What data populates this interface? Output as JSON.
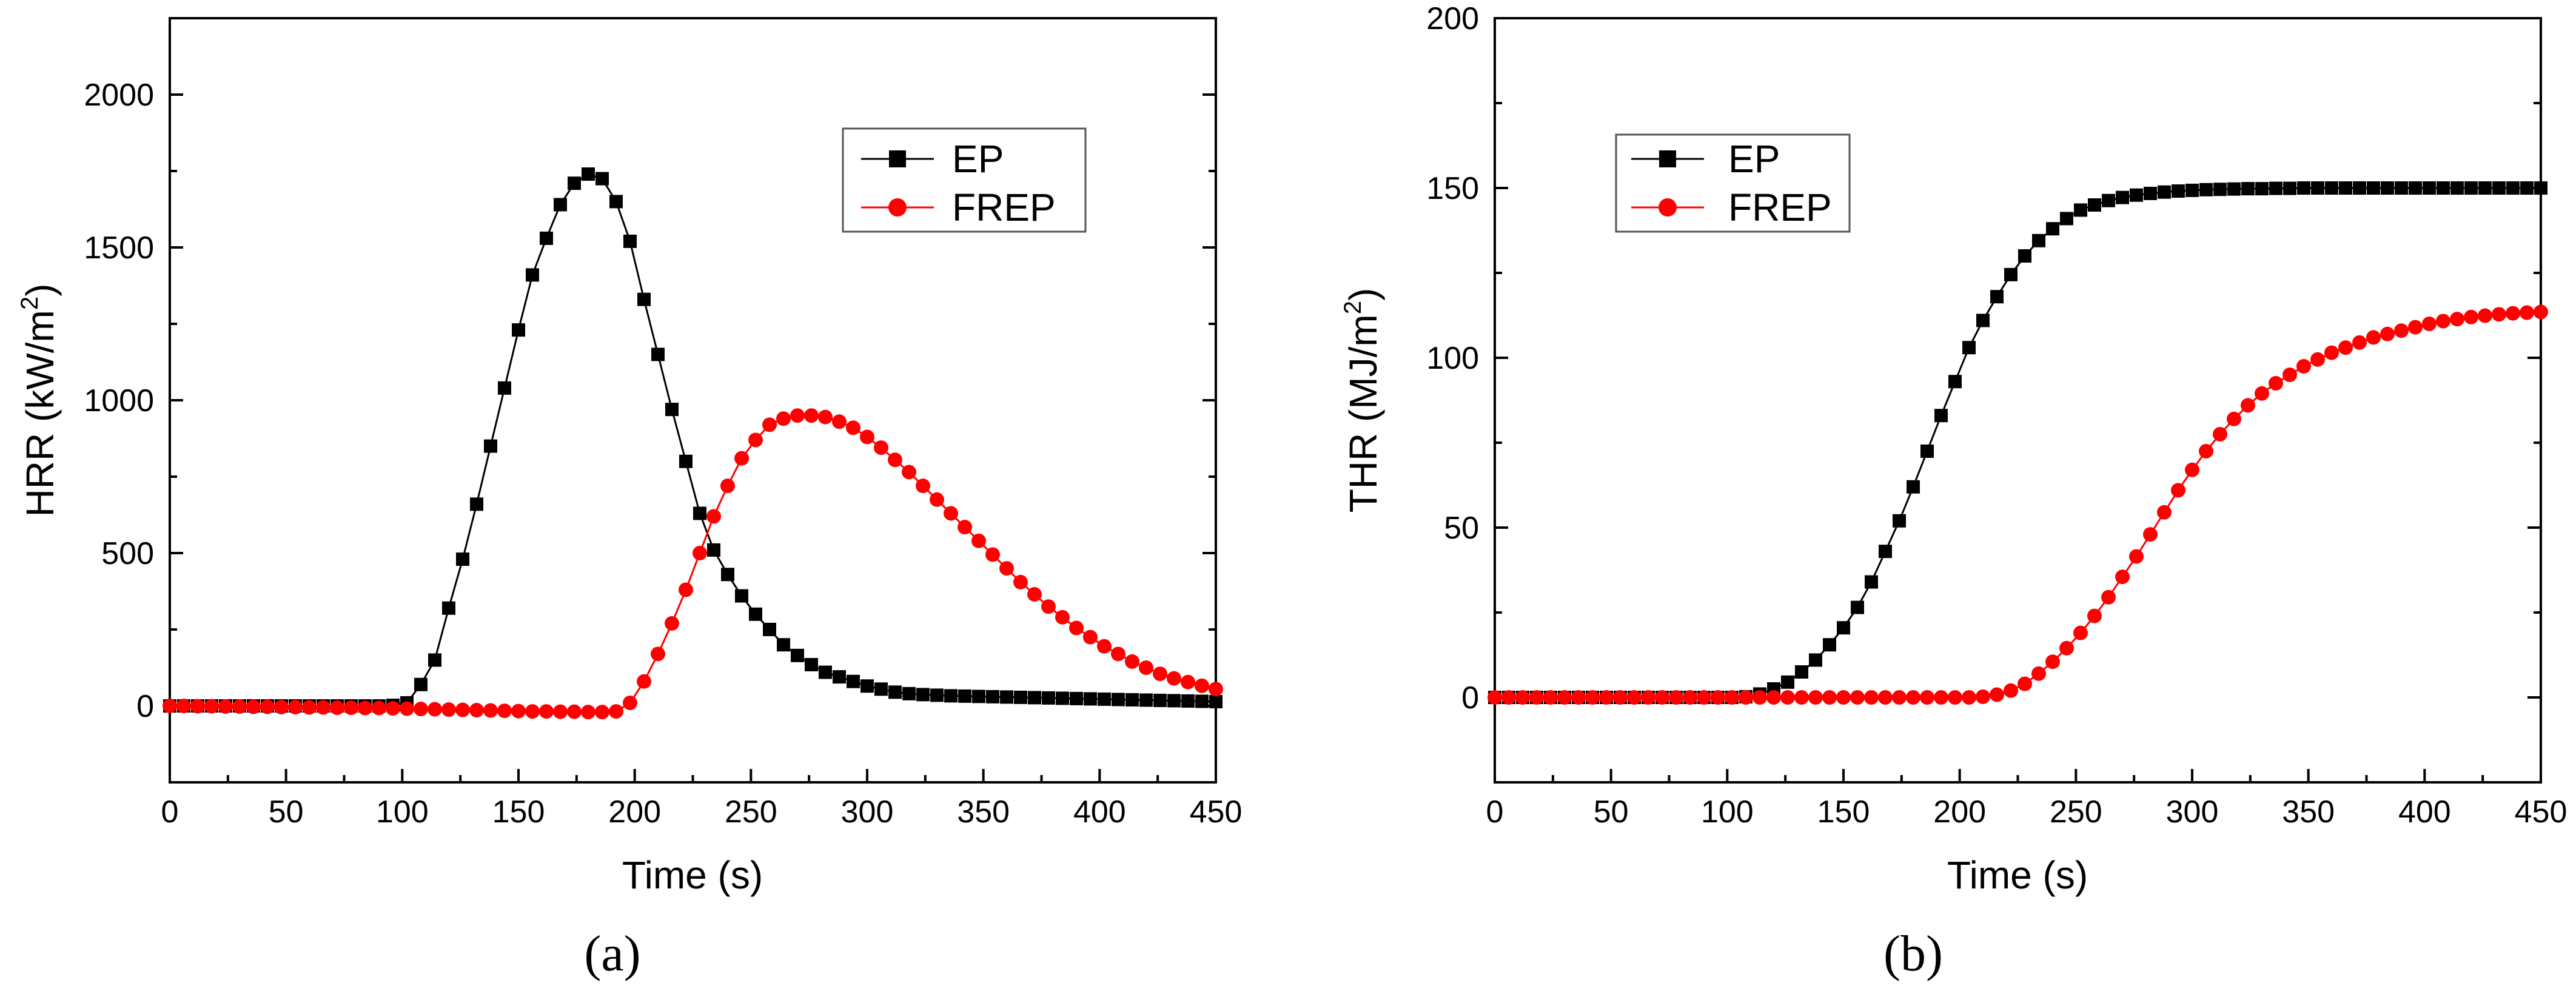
{
  "chart_data": [
    {
      "type": "line",
      "panel_label": "(a)",
      "xlabel": "Time (s)",
      "ylabel": "HRR (kW/m2)",
      "ylabel_main": "HRR (kW/m",
      "ylabel_sup": "2",
      "ylabel_end": ")",
      "xlim": [
        0,
        450
      ],
      "ylim": [
        -250,
        2250
      ],
      "xticks": [
        "0",
        "50",
        "100",
        "150",
        "200",
        "250",
        "300",
        "350",
        "400",
        "450"
      ],
      "yticks": [
        "0",
        "500",
        "1000",
        "1500",
        "2000"
      ],
      "legend": [
        "EP",
        "FREP"
      ],
      "legend_position": "top-right",
      "series": [
        {
          "name": "EP",
          "color": "#000000",
          "marker": "square",
          "x": [
            0,
            6,
            12,
            18,
            24,
            30,
            36,
            42,
            48,
            54,
            60,
            66,
            72,
            78,
            84,
            90,
            96,
            102,
            108,
            114,
            120,
            126,
            132,
            138,
            144,
            150,
            156,
            162,
            168,
            174,
            180,
            186,
            192,
            198,
            204,
            210,
            216,
            222,
            228,
            234,
            240,
            246,
            252,
            258,
            264,
            270,
            276,
            282,
            288,
            294,
            300,
            306,
            312,
            318,
            324,
            330,
            336,
            342,
            348,
            354,
            360,
            366,
            372,
            378,
            384,
            390,
            396,
            402,
            408,
            414,
            420,
            426,
            432,
            438,
            444,
            450
          ],
          "y": [
            0,
            0,
            0,
            0,
            0,
            0,
            0,
            0,
            0,
            0,
            0,
            0,
            0,
            0,
            0,
            0,
            2,
            10,
            70,
            150,
            320,
            480,
            660,
            850,
            1040,
            1230,
            1410,
            1530,
            1640,
            1710,
            1740,
            1725,
            1650,
            1520,
            1330,
            1150,
            970,
            800,
            630,
            510,
            430,
            360,
            300,
            250,
            200,
            165,
            135,
            110,
            95,
            80,
            65,
            55,
            45,
            40,
            37,
            35,
            33,
            32,
            31,
            30,
            29,
            28,
            27,
            26,
            25,
            24,
            23,
            22,
            21,
            20,
            19,
            18,
            17,
            16,
            15,
            14
          ]
        },
        {
          "name": "FREP",
          "color": "#ff0000",
          "marker": "circle",
          "x": [
            0,
            6,
            12,
            18,
            24,
            30,
            36,
            42,
            48,
            54,
            60,
            66,
            72,
            78,
            84,
            90,
            96,
            102,
            108,
            114,
            120,
            126,
            132,
            138,
            144,
            150,
            156,
            162,
            168,
            174,
            180,
            186,
            192,
            198,
            204,
            210,
            216,
            222,
            228,
            234,
            240,
            246,
            252,
            258,
            264,
            270,
            276,
            282,
            288,
            294,
            300,
            306,
            312,
            318,
            324,
            330,
            336,
            342,
            348,
            354,
            360,
            366,
            372,
            378,
            384,
            390,
            396,
            402,
            408,
            414,
            420,
            426,
            432,
            438,
            444,
            450
          ],
          "y": [
            0,
            0,
            -1,
            -1,
            -2,
            -2,
            -3,
            -3,
            -4,
            -4,
            -5,
            -5,
            -6,
            -6,
            -7,
            -7,
            -8,
            -9,
            -10,
            -11,
            -12,
            -13,
            -14,
            -15,
            -16,
            -17,
            -18,
            -18,
            -19,
            -19,
            -20,
            -20,
            -18,
            10,
            80,
            170,
            270,
            380,
            500,
            620,
            720,
            810,
            870,
            920,
            940,
            950,
            950,
            945,
            930,
            910,
            880,
            845,
            805,
            765,
            720,
            675,
            630,
            585,
            540,
            495,
            450,
            405,
            365,
            325,
            290,
            255,
            225,
            195,
            170,
            145,
            125,
            105,
            90,
            78,
            66,
            55
          ]
        }
      ]
    },
    {
      "type": "line",
      "panel_label": "(b)",
      "xlabel": "Time (s)",
      "ylabel": "THR (MJ/m2)",
      "ylabel_main": "THR (MJ/m",
      "ylabel_sup": "2",
      "ylabel_end": ")",
      "xlim": [
        0,
        450
      ],
      "ylim": [
        -25,
        200
      ],
      "xticks": [
        "0",
        "50",
        "100",
        "150",
        "200",
        "250",
        "300",
        "350",
        "400",
        "450"
      ],
      "yticks": [
        "0",
        "50",
        "100",
        "150",
        "200"
      ],
      "legend": [
        "EP",
        "FREP"
      ],
      "legend_position": "top-left",
      "series": [
        {
          "name": "EP",
          "color": "#000000",
          "marker": "square",
          "x": [
            0,
            6,
            12,
            18,
            24,
            30,
            36,
            42,
            48,
            54,
            60,
            66,
            72,
            78,
            84,
            90,
            96,
            102,
            108,
            114,
            120,
            126,
            132,
            138,
            144,
            150,
            156,
            162,
            168,
            174,
            180,
            186,
            192,
            198,
            204,
            210,
            216,
            222,
            228,
            234,
            240,
            246,
            252,
            258,
            264,
            270,
            276,
            282,
            288,
            294,
            300,
            306,
            312,
            318,
            324,
            330,
            336,
            342,
            348,
            354,
            360,
            366,
            372,
            378,
            384,
            390,
            396,
            402,
            408,
            414,
            420,
            426,
            432,
            438,
            444,
            450
          ],
          "y": [
            0,
            0,
            0,
            0,
            0,
            0,
            0,
            0,
            0,
            0,
            0,
            0,
            0,
            0,
            0,
            0,
            0,
            0,
            0.2,
            1,
            2.5,
            4.5,
            7.5,
            11,
            15.5,
            20.5,
            26.5,
            34,
            43,
            52,
            62,
            72.5,
            83,
            93,
            103,
            111,
            118,
            124.5,
            130,
            134.5,
            138,
            141,
            143.5,
            145,
            146.3,
            147.2,
            147.9,
            148.4,
            148.8,
            149.1,
            149.3,
            149.5,
            149.6,
            149.7,
            149.8,
            149.8,
            149.9,
            149.9,
            150,
            150,
            150,
            150,
            150,
            150,
            150,
            150,
            150,
            150,
            150,
            150,
            150,
            150,
            150,
            150,
            150,
            150
          ]
        },
        {
          "name": "FREP",
          "color": "#ff0000",
          "marker": "circle",
          "x": [
            0,
            6,
            12,
            18,
            24,
            30,
            36,
            42,
            48,
            54,
            60,
            66,
            72,
            78,
            84,
            90,
            96,
            102,
            108,
            114,
            120,
            126,
            132,
            138,
            144,
            150,
            156,
            162,
            168,
            174,
            180,
            186,
            192,
            198,
            204,
            210,
            216,
            222,
            228,
            234,
            240,
            246,
            252,
            258,
            264,
            270,
            276,
            282,
            288,
            294,
            300,
            306,
            312,
            318,
            324,
            330,
            336,
            342,
            348,
            354,
            360,
            366,
            372,
            378,
            384,
            390,
            396,
            402,
            408,
            414,
            420,
            426,
            432,
            438,
            444,
            450
          ],
          "y": [
            0,
            0,
            0,
            0,
            0,
            0,
            0,
            0,
            0,
            0,
            0,
            0,
            0,
            0,
            0,
            0,
            0,
            0,
            0,
            0,
            0,
            0,
            0,
            0,
            0,
            0,
            0,
            0,
            0,
            0,
            0,
            0,
            0,
            0,
            0,
            0.2,
            0.8,
            2,
            4,
            7,
            10.5,
            14.5,
            19,
            24,
            29.5,
            35.5,
            41.5,
            48,
            54.5,
            61,
            67,
            72.5,
            77.5,
            82,
            86,
            89.5,
            92.5,
            95,
            97.5,
            99.5,
            101.5,
            103,
            104.5,
            106,
            107,
            108,
            109,
            110,
            110.8,
            111.4,
            112,
            112.4,
            112.8,
            113.1,
            113.3,
            113.5
          ]
        }
      ]
    }
  ]
}
